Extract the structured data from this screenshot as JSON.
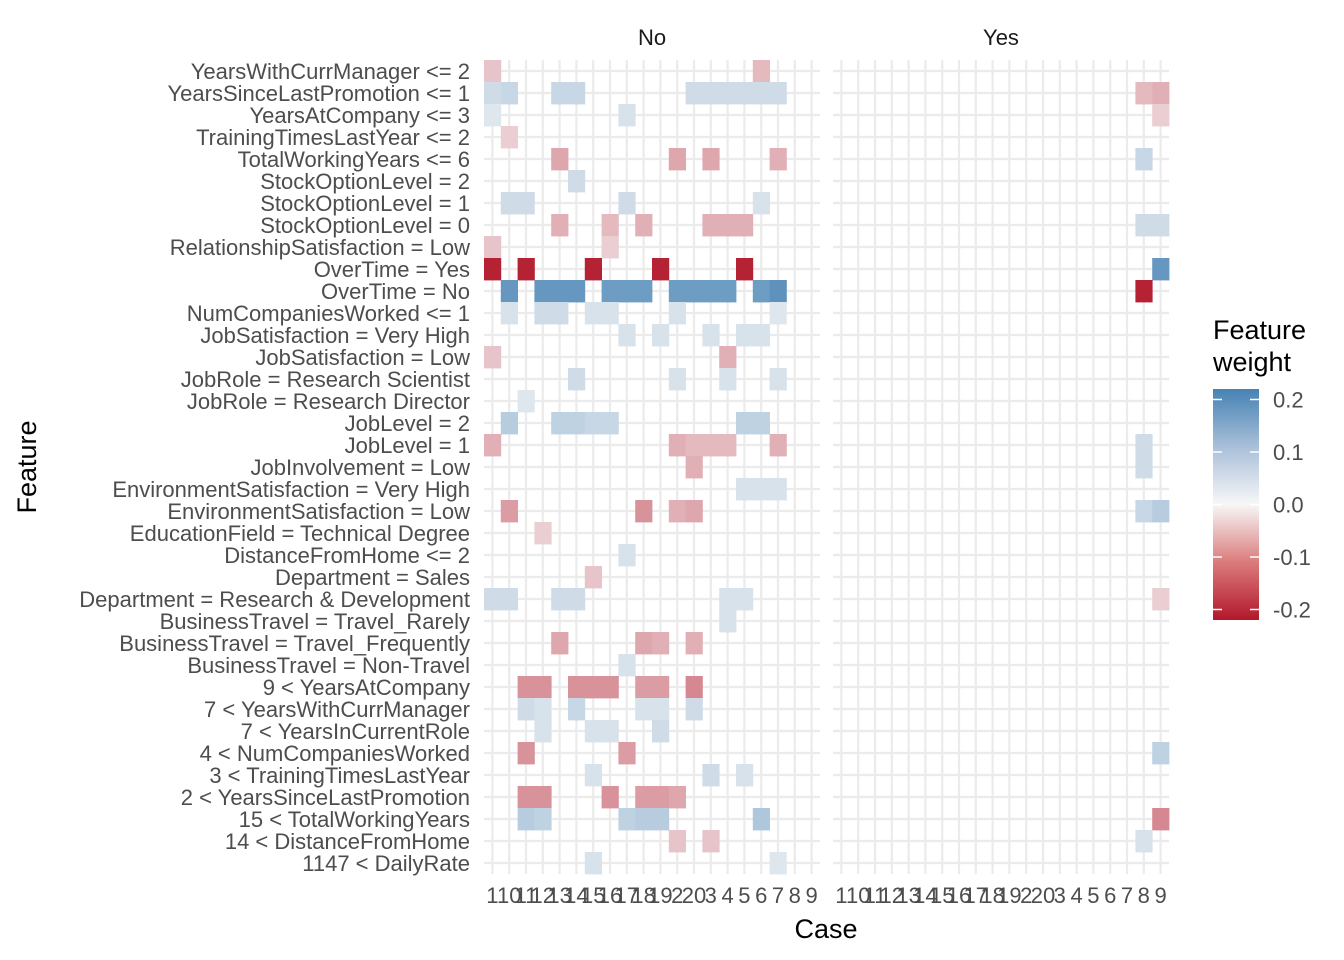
{
  "chart_data": {
    "type": "heatmap",
    "xlabel": "Case",
    "ylabel": "Feature",
    "facets": [
      "No",
      "Yes"
    ],
    "x_tick_labels": [
      "1",
      "10",
      "11",
      "12",
      "13",
      "14",
      "15",
      "16",
      "17",
      "18",
      "19",
      "2",
      "20",
      "3",
      "4",
      "5",
      "6",
      "7",
      "8",
      "9"
    ],
    "features": [
      "YearsWithCurrManager <= 2",
      "YearsSinceLastPromotion <= 1",
      "YearsAtCompany <= 3",
      "TrainingTimesLastYear <= 2",
      "TotalWorkingYears <= 6",
      "StockOptionLevel = 2",
      "StockOptionLevel = 1",
      "StockOptionLevel = 0",
      "RelationshipSatisfaction = Low",
      "OverTime = Yes",
      "OverTime = No",
      "NumCompaniesWorked <= 1",
      "JobSatisfaction = Very High",
      "JobSatisfaction = Low",
      "JobRole = Research Scientist",
      "JobRole = Research Director",
      "JobLevel = 2",
      "JobLevel = 1",
      "JobInvolvement = Low",
      "EnvironmentSatisfaction = Very High",
      "EnvironmentSatisfaction = Low",
      "EducationField = Technical Degree",
      "DistanceFromHome <= 2",
      "Department = Sales",
      "Department = Research & Development",
      "BusinessTravel = Travel_Rarely",
      "BusinessTravel = Travel_Frequently",
      "BusinessTravel = Non-Travel",
      "9 < YearsAtCompany",
      "7 < YearsWithCurrManager",
      "7 < YearsInCurrentRole",
      "4 < NumCompaniesWorked",
      "3 < TrainingTimesLastYear",
      "2 < YearsSinceLastPromotion",
      "15 < TotalWorkingYears",
      "14 < DistanceFromHome",
      "1147 < DailyRate"
    ],
    "cells": {
      "No": [
        [
          "YearsWithCurrManager <= 2",
          0,
          -0.05
        ],
        [
          "YearsWithCurrManager <= 2",
          16,
          -0.06
        ],
        [
          "YearsSinceLastPromotion <= 1",
          0,
          0.05
        ],
        [
          "YearsSinceLastPromotion <= 1",
          1,
          0.06
        ],
        [
          "YearsSinceLastPromotion <= 1",
          4,
          0.06
        ],
        [
          "YearsSinceLastPromotion <= 1",
          5,
          0.06
        ],
        [
          "YearsSinceLastPromotion <= 1",
          12,
          0.05
        ],
        [
          "YearsSinceLastPromotion <= 1",
          13,
          0.05
        ],
        [
          "YearsSinceLastPromotion <= 1",
          14,
          0.05
        ],
        [
          "YearsSinceLastPromotion <= 1",
          15,
          0.05
        ],
        [
          "YearsSinceLastPromotion <= 1",
          16,
          0.05
        ],
        [
          "YearsSinceLastPromotion <= 1",
          17,
          0.05
        ],
        [
          "YearsAtCompany <= 3",
          0,
          0.03
        ],
        [
          "YearsAtCompany <= 3",
          8,
          0.04
        ],
        [
          "TrainingTimesLastYear <= 2",
          1,
          -0.04
        ],
        [
          "TotalWorkingYears <= 6",
          4,
          -0.08
        ],
        [
          "TotalWorkingYears <= 6",
          11,
          -0.08
        ],
        [
          "TotalWorkingYears <= 6",
          13,
          -0.08
        ],
        [
          "TotalWorkingYears <= 6",
          17,
          -0.07
        ],
        [
          "StockOptionLevel = 2",
          5,
          0.05
        ],
        [
          "StockOptionLevel = 1",
          1,
          0.05
        ],
        [
          "StockOptionLevel = 1",
          2,
          0.05
        ],
        [
          "StockOptionLevel = 1",
          8,
          0.05
        ],
        [
          "StockOptionLevel = 1",
          16,
          0.04
        ],
        [
          "StockOptionLevel = 0",
          4,
          -0.07
        ],
        [
          "StockOptionLevel = 0",
          7,
          -0.06
        ],
        [
          "StockOptionLevel = 0",
          9,
          -0.07
        ],
        [
          "StockOptionLevel = 0",
          13,
          -0.07
        ],
        [
          "StockOptionLevel = 0",
          14,
          -0.07
        ],
        [
          "StockOptionLevel = 0",
          15,
          -0.07
        ],
        [
          "RelationshipSatisfaction = Low",
          0,
          -0.05
        ],
        [
          "RelationshipSatisfaction = Low",
          7,
          -0.04
        ],
        [
          "OverTime = Yes",
          0,
          -0.21
        ],
        [
          "OverTime = Yes",
          2,
          -0.21
        ],
        [
          "OverTime = Yes",
          6,
          -0.21
        ],
        [
          "OverTime = Yes",
          10,
          -0.21
        ],
        [
          "OverTime = Yes",
          15,
          -0.21
        ],
        [
          "OverTime = No",
          1,
          0.18
        ],
        [
          "OverTime = No",
          3,
          0.18
        ],
        [
          "OverTime = No",
          4,
          0.18
        ],
        [
          "OverTime = No",
          5,
          0.18
        ],
        [
          "OverTime = No",
          7,
          0.17
        ],
        [
          "OverTime = No",
          8,
          0.17
        ],
        [
          "OverTime = No",
          9,
          0.17
        ],
        [
          "OverTime = No",
          11,
          0.17
        ],
        [
          "OverTime = No",
          12,
          0.17
        ],
        [
          "OverTime = No",
          13,
          0.17
        ],
        [
          "OverTime = No",
          14,
          0.17
        ],
        [
          "OverTime = No",
          16,
          0.17
        ],
        [
          "OverTime = No",
          17,
          0.19
        ],
        [
          "NumCompaniesWorked <= 1",
          1,
          0.04
        ],
        [
          "NumCompaniesWorked <= 1",
          3,
          0.05
        ],
        [
          "NumCompaniesWorked <= 1",
          4,
          0.05
        ],
        [
          "NumCompaniesWorked <= 1",
          6,
          0.04
        ],
        [
          "NumCompaniesWorked <= 1",
          7,
          0.04
        ],
        [
          "NumCompaniesWorked <= 1",
          11,
          0.04
        ],
        [
          "NumCompaniesWorked <= 1",
          17,
          0.03
        ],
        [
          "JobSatisfaction = Very High",
          8,
          0.04
        ],
        [
          "JobSatisfaction = Very High",
          10,
          0.04
        ],
        [
          "JobSatisfaction = Very High",
          13,
          0.04
        ],
        [
          "JobSatisfaction = Very High",
          15,
          0.04
        ],
        [
          "JobSatisfaction = Very High",
          16,
          0.04
        ],
        [
          "JobSatisfaction = Low",
          0,
          -0.05
        ],
        [
          "JobSatisfaction = Low",
          14,
          -0.07
        ],
        [
          "JobRole = Research Scientist",
          5,
          0.05
        ],
        [
          "JobRole = Research Scientist",
          11,
          0.04
        ],
        [
          "JobRole = Research Scientist",
          14,
          0.04
        ],
        [
          "JobRole = Research Scientist",
          17,
          0.04
        ],
        [
          "JobRole = Research Director",
          2,
          0.03
        ],
        [
          "JobLevel = 2",
          1,
          0.08
        ],
        [
          "JobLevel = 2",
          4,
          0.07
        ],
        [
          "JobLevel = 2",
          5,
          0.07
        ],
        [
          "JobLevel = 2",
          6,
          0.06
        ],
        [
          "JobLevel = 2",
          7,
          0.06
        ],
        [
          "JobLevel = 2",
          15,
          0.07
        ],
        [
          "JobLevel = 2",
          16,
          0.07
        ],
        [
          "JobLevel = 1",
          0,
          -0.07
        ],
        [
          "JobLevel = 1",
          11,
          -0.07
        ],
        [
          "JobLevel = 1",
          12,
          -0.06
        ],
        [
          "JobLevel = 1",
          13,
          -0.06
        ],
        [
          "JobLevel = 1",
          14,
          -0.06
        ],
        [
          "JobLevel = 1",
          17,
          -0.07
        ],
        [
          "JobInvolvement = Low",
          12,
          -0.07
        ],
        [
          "EnvironmentSatisfaction = Very High",
          15,
          0.04
        ],
        [
          "EnvironmentSatisfaction = Very High",
          16,
          0.04
        ],
        [
          "EnvironmentSatisfaction = Very High",
          17,
          0.04
        ],
        [
          "EnvironmentSatisfaction = Low",
          1,
          -0.09
        ],
        [
          "EnvironmentSatisfaction = Low",
          9,
          -0.1
        ],
        [
          "EnvironmentSatisfaction = Low",
          11,
          -0.07
        ],
        [
          "EnvironmentSatisfaction = Low",
          12,
          -0.08
        ],
        [
          "EducationField = Technical Degree",
          3,
          -0.04
        ],
        [
          "DistanceFromHome <= 2",
          8,
          0.04
        ],
        [
          "Department = Sales",
          6,
          -0.05
        ],
        [
          "Department = Research & Development",
          0,
          0.05
        ],
        [
          "Department = Research & Development",
          1,
          0.05
        ],
        [
          "Department = Research & Development",
          4,
          0.05
        ],
        [
          "Department = Research & Development",
          5,
          0.05
        ],
        [
          "Department = Research & Development",
          14,
          0.04
        ],
        [
          "Department = Research & Development",
          15,
          0.04
        ],
        [
          "BusinessTravel = Travel_Rarely",
          14,
          0.04
        ],
        [
          "BusinessTravel = Travel_Frequently",
          4,
          -0.08
        ],
        [
          "BusinessTravel = Travel_Frequently",
          9,
          -0.08
        ],
        [
          "BusinessTravel = Travel_Frequently",
          10,
          -0.07
        ],
        [
          "BusinessTravel = Travel_Frequently",
          12,
          -0.07
        ],
        [
          "BusinessTravel = Non-Travel",
          8,
          0.04
        ],
        [
          "9 < YearsAtCompany",
          2,
          -0.1
        ],
        [
          "9 < YearsAtCompany",
          3,
          -0.1
        ],
        [
          "9 < YearsAtCompany",
          5,
          -0.1
        ],
        [
          "9 < YearsAtCompany",
          6,
          -0.1
        ],
        [
          "9 < YearsAtCompany",
          7,
          -0.1
        ],
        [
          "9 < YearsAtCompany",
          9,
          -0.09
        ],
        [
          "9 < YearsAtCompany",
          10,
          -0.09
        ],
        [
          "9 < YearsAtCompany",
          12,
          -0.11
        ],
        [
          "7 < YearsWithCurrManager",
          2,
          0.05
        ],
        [
          "7 < YearsWithCurrManager",
          3,
          0.04
        ],
        [
          "7 < YearsWithCurrManager",
          5,
          0.06
        ],
        [
          "7 < YearsWithCurrManager",
          9,
          0.04
        ],
        [
          "7 < YearsWithCurrManager",
          10,
          0.04
        ],
        [
          "7 < YearsWithCurrManager",
          12,
          0.05
        ],
        [
          "7 < YearsInCurrentRole",
          3,
          0.04
        ],
        [
          "7 < YearsInCurrentRole",
          6,
          0.04
        ],
        [
          "7 < YearsInCurrentRole",
          7,
          0.04
        ],
        [
          "7 < YearsInCurrentRole",
          10,
          0.05
        ],
        [
          "4 < NumCompaniesWorked",
          2,
          -0.1
        ],
        [
          "4 < NumCompaniesWorked",
          8,
          -0.09
        ],
        [
          "3 < TrainingTimesLastYear",
          6,
          0.04
        ],
        [
          "3 < TrainingTimesLastYear",
          13,
          0.05
        ],
        [
          "3 < TrainingTimesLastYear",
          15,
          0.04
        ],
        [
          "2 < YearsSinceLastPromotion",
          2,
          -0.1
        ],
        [
          "2 < YearsSinceLastPromotion",
          3,
          -0.1
        ],
        [
          "2 < YearsSinceLastPromotion",
          7,
          -0.1
        ],
        [
          "2 < YearsSinceLastPromotion",
          9,
          -0.09
        ],
        [
          "2 < YearsSinceLastPromotion",
          10,
          -0.09
        ],
        [
          "2 < YearsSinceLastPromotion",
          11,
          -0.08
        ],
        [
          "15 < TotalWorkingYears",
          2,
          0.08
        ],
        [
          "15 < TotalWorkingYears",
          3,
          0.07
        ],
        [
          "15 < TotalWorkingYears",
          8,
          0.07
        ],
        [
          "15 < TotalWorkingYears",
          9,
          0.08
        ],
        [
          "15 < TotalWorkingYears",
          10,
          0.08
        ],
        [
          "15 < TotalWorkingYears",
          16,
          0.09
        ],
        [
          "14 < DistanceFromHome",
          11,
          -0.05
        ],
        [
          "14 < DistanceFromHome",
          13,
          -0.05
        ],
        [
          "1147 < DailyRate",
          6,
          0.04
        ],
        [
          "1147 < DailyRate",
          17,
          0.03
        ]
      ],
      "Yes": [
        [
          "YearsSinceLastPromotion <= 1",
          18,
          -0.06
        ],
        [
          "YearsSinceLastPromotion <= 1",
          19,
          -0.07
        ],
        [
          "YearsAtCompany <= 3",
          19,
          -0.04
        ],
        [
          "TotalWorkingYears <= 6",
          18,
          0.06
        ],
        [
          "StockOptionLevel = 0",
          18,
          0.05
        ],
        [
          "StockOptionLevel = 0",
          19,
          0.05
        ],
        [
          "OverTime = Yes",
          19,
          0.18
        ],
        [
          "OverTime = No",
          18,
          -0.21
        ],
        [
          "JobLevel = 1",
          18,
          0.05
        ],
        [
          "JobInvolvement = Low",
          18,
          0.05
        ],
        [
          "EnvironmentSatisfaction = Low",
          18,
          0.06
        ],
        [
          "EnvironmentSatisfaction = Low",
          19,
          0.08
        ],
        [
          "Department = Research & Development",
          19,
          -0.04
        ],
        [
          "4 < NumCompaniesWorked",
          19,
          0.07
        ],
        [
          "15 < TotalWorkingYears",
          19,
          -0.11
        ],
        [
          "14 < DistanceFromHome",
          18,
          0.04
        ]
      ]
    },
    "legend": {
      "title": [
        "Feature",
        "weight"
      ],
      "breaks": [
        "0.2",
        "0.1",
        "0.0",
        "-0.1",
        "-0.2"
      ],
      "range": [
        -0.22,
        0.22
      ],
      "low_color": "#B2182B",
      "mid_color": "#F7F7F7",
      "high_color": "#4682B4",
      "position": "right"
    },
    "grid": true
  }
}
